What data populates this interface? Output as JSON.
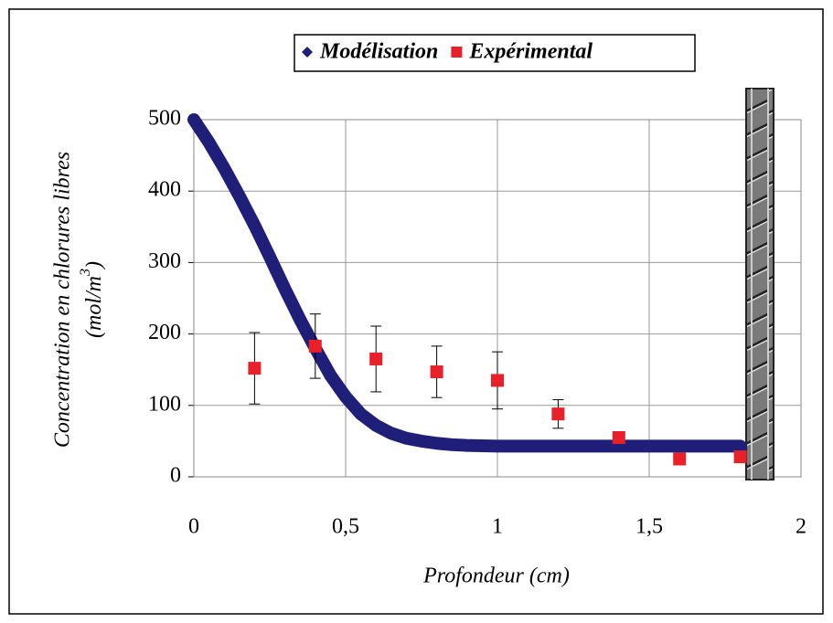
{
  "chart_data": {
    "type": "scatter",
    "x_label": "Profondeur (cm)",
    "y_label": "Concentration en chlorures libres",
    "y_label_unit": [
      "(mol/m",
      "3",
      ")"
    ],
    "xlim": [
      0,
      2
    ],
    "xticks": [
      0,
      {
        "value": 0.5,
        "label": "0,5"
      },
      1,
      {
        "value": 1.5,
        "label": "1,5"
      },
      2
    ],
    "ylim": [
      0,
      500
    ],
    "yticks": [
      0,
      100,
      200,
      300,
      400,
      500
    ],
    "grid": true,
    "legend": "top",
    "series": [
      {
        "name": "Modélisation",
        "color": "#1f1f7a",
        "style": "line",
        "x": [
          0,
          0.05,
          0.1,
          0.15,
          0.2,
          0.25,
          0.3,
          0.35,
          0.4,
          0.45,
          0.5,
          0.55,
          0.6,
          0.65,
          0.7,
          0.75,
          0.8,
          0.85,
          0.9,
          1,
          1.1,
          1.2,
          1.3,
          1.4,
          1.5,
          1.6,
          1.7,
          1.8
        ],
        "values": [
          500,
          468,
          432,
          393,
          352,
          308,
          263,
          220,
          180,
          142,
          112,
          88,
          72,
          61,
          54,
          50,
          47,
          45,
          44,
          43,
          43,
          43,
          43,
          43,
          43,
          43,
          43,
          43
        ]
      },
      {
        "name": "Expérimental",
        "color": "#e8202a",
        "style": "points",
        "x": [
          0.2,
          0.4,
          0.6,
          0.8,
          1,
          1.2,
          1.4,
          1.6,
          1.8
        ],
        "values": [
          152,
          183,
          165,
          147,
          135,
          88,
          55,
          25,
          28
        ],
        "errors": [
          50,
          45,
          46,
          36,
          40,
          20,
          5,
          5,
          0
        ]
      }
    ]
  }
}
